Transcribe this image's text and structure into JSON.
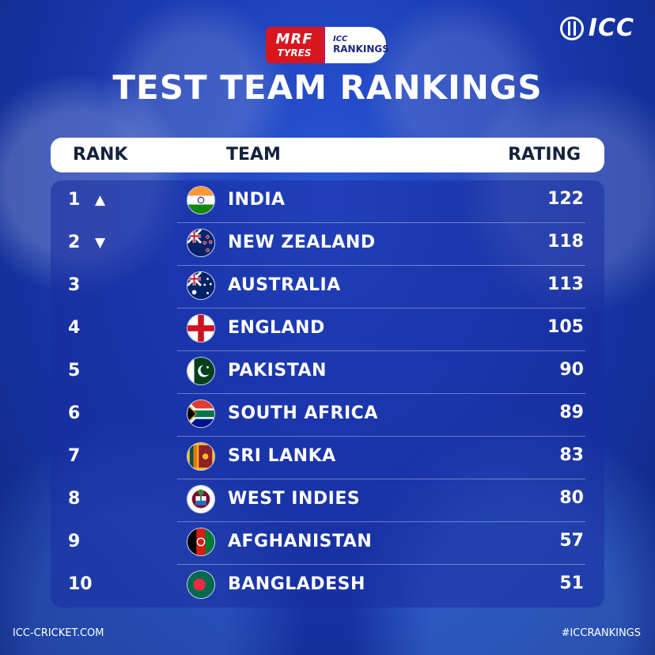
{
  "brand": {
    "icc": "ICC",
    "sponsor_line1": "MRF",
    "sponsor_line2": "TYRES",
    "rankings_small": "ICC",
    "rankings_big": "RANKINGS"
  },
  "title": "TEST TEAM RANKINGS",
  "columns": {
    "rank": "RANK",
    "team": "TEAM",
    "rating": "RATING"
  },
  "rows": [
    {
      "rank": "1",
      "arrow": "▲",
      "team": "INDIA",
      "rating": "122",
      "flag_icon": "india-flag-icon"
    },
    {
      "rank": "2",
      "arrow": "▼",
      "team": "NEW ZEALAND",
      "rating": "118",
      "flag_icon": "new-zealand-flag-icon"
    },
    {
      "rank": "3",
      "arrow": "",
      "team": "AUSTRALIA",
      "rating": "113",
      "flag_icon": "australia-flag-icon"
    },
    {
      "rank": "4",
      "arrow": "",
      "team": "ENGLAND",
      "rating": "105",
      "flag_icon": "england-flag-icon"
    },
    {
      "rank": "5",
      "arrow": "",
      "team": "PAKISTAN",
      "rating": "90",
      "flag_icon": "pakistan-flag-icon"
    },
    {
      "rank": "6",
      "arrow": "",
      "team": "SOUTH AFRICA",
      "rating": "89",
      "flag_icon": "south-africa-flag-icon"
    },
    {
      "rank": "7",
      "arrow": "",
      "team": "SRI LANKA",
      "rating": "83",
      "flag_icon": "sri-lanka-flag-icon"
    },
    {
      "rank": "8",
      "arrow": "",
      "team": "WEST INDIES",
      "rating": "80",
      "flag_icon": "west-indies-flag-icon"
    },
    {
      "rank": "9",
      "arrow": "",
      "team": "AFGHANISTAN",
      "rating": "57",
      "flag_icon": "afghanistan-flag-icon"
    },
    {
      "rank": "10",
      "arrow": "",
      "team": "BANGLADESH",
      "rating": "51",
      "flag_icon": "bangladesh-flag-icon"
    }
  ],
  "footer": {
    "left": "ICC-CRICKET.COM",
    "right": "#ICCRANKINGS"
  },
  "colors": {
    "background": "#1a3bb3",
    "header_bg": "#ffffff",
    "header_text": "#14213d",
    "sponsor_red": "#d7161e"
  }
}
